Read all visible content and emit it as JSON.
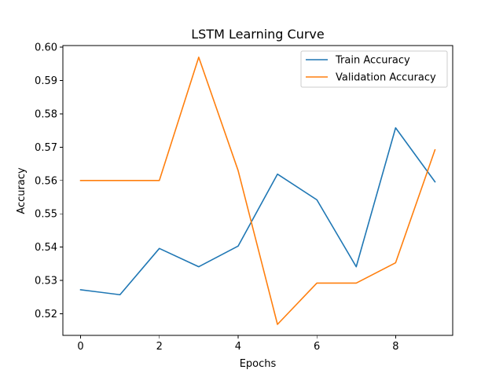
{
  "chart_data": {
    "type": "line",
    "title": "LSTM Learning Curve",
    "xlabel": "Epochs",
    "ylabel": "Accuracy",
    "x": [
      0,
      1,
      2,
      3,
      4,
      5,
      6,
      7,
      8,
      9
    ],
    "xlim": [
      -0.45,
      9.45
    ],
    "ylim": [
      0.5135,
      0.6005
    ],
    "xticks": [
      0,
      2,
      4,
      6,
      8
    ],
    "xtick_labels": [
      "0",
      "2",
      "4",
      "6",
      "8"
    ],
    "yticks": [
      0.52,
      0.53,
      0.54,
      0.55,
      0.56,
      0.57,
      0.58,
      0.59,
      0.6
    ],
    "ytick_labels": [
      "0.52",
      "0.53",
      "0.54",
      "0.55",
      "0.56",
      "0.57",
      "0.58",
      "0.59",
      "0.60"
    ],
    "grid": false,
    "legend_position": "upper right",
    "series": [
      {
        "name": "Train Accuracy",
        "color": "#1f77b4",
        "values": [
          0.5272,
          0.5257,
          0.5396,
          0.5341,
          0.5403,
          0.5619,
          0.5542,
          0.5341,
          0.5758,
          0.5596
        ]
      },
      {
        "name": "Validation Accuracy",
        "color": "#ff7f0e",
        "values": [
          0.56,
          0.56,
          0.56,
          0.597,
          0.563,
          0.5168,
          0.5292,
          0.5292,
          0.5353,
          0.5692
        ]
      }
    ]
  }
}
